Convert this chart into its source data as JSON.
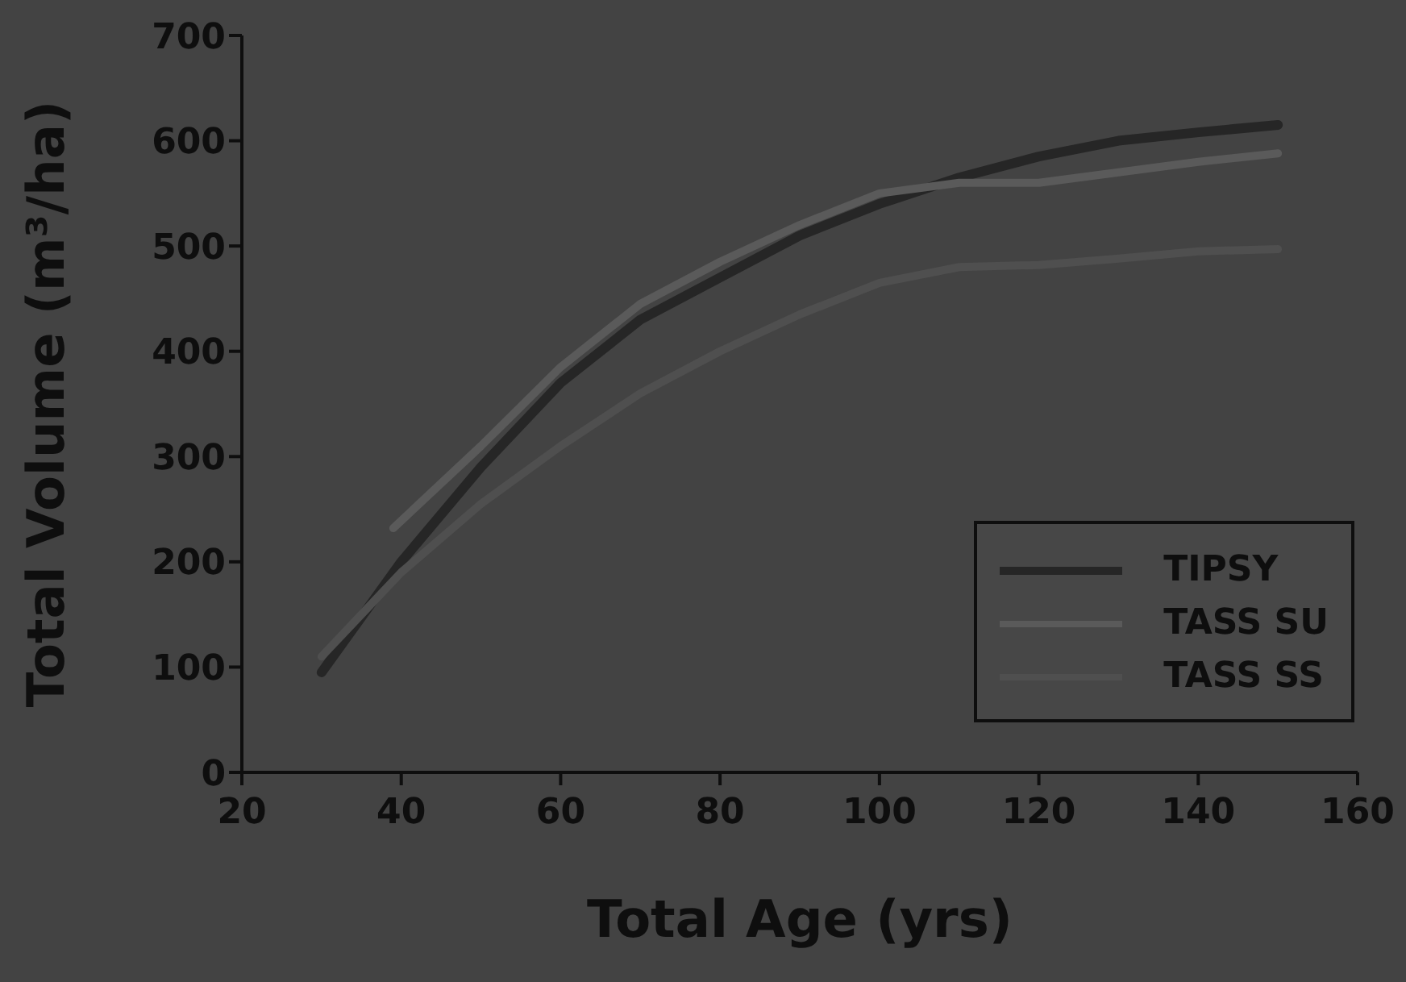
{
  "chart_data": {
    "type": "line",
    "xlabel": "Total Age (yrs)",
    "ylabel": "Total Volume (m³/ha)",
    "xlim": [
      20,
      160
    ],
    "xticks": [
      20,
      40,
      60,
      80,
      100,
      120,
      140,
      160
    ],
    "ylim": [
      0,
      700
    ],
    "yticks": [
      0,
      100,
      200,
      300,
      400,
      500,
      600,
      700
    ],
    "grid": false,
    "legend": "bottom right",
    "marker": "none",
    "line_style": "solid",
    "series": [
      {
        "name": "TIPSY",
        "color": "#262626",
        "x": [
          30,
          40,
          50,
          60,
          70,
          80,
          90,
          100,
          110,
          120,
          130,
          140,
          150
        ],
        "values": [
          95,
          200,
          290,
          370,
          430,
          470,
          510,
          540,
          565,
          585,
          600,
          608,
          615
        ]
      },
      {
        "name": "TASS SU",
        "color": "#5a5a5a",
        "x": [
          39,
          50,
          60,
          70,
          80,
          90,
          100,
          110,
          120,
          130,
          140,
          150
        ],
        "values": [
          232,
          310,
          385,
          445,
          485,
          520,
          550,
          560,
          560,
          570,
          580,
          588
        ]
      },
      {
        "name": "TASS SS",
        "color": "#4f4f4f",
        "x": [
          30,
          40,
          50,
          60,
          70,
          80,
          90,
          100,
          110,
          120,
          130,
          140,
          150
        ],
        "values": [
          110,
          190,
          255,
          310,
          360,
          400,
          435,
          465,
          480,
          482,
          488,
          495,
          497
        ]
      }
    ]
  }
}
